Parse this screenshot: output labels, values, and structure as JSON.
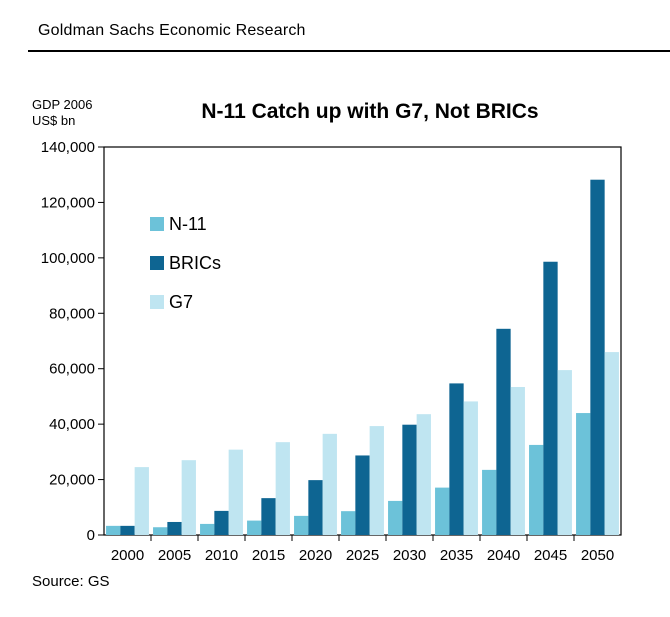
{
  "header": {
    "title": "Goldman Sachs Economic Research"
  },
  "source": "Source: GS",
  "chart_data": {
    "type": "bar",
    "title": "N-11 Catch up with G7, Not BRICs",
    "ylabel": [
      "GDP 2006",
      "US$ bn"
    ],
    "xlabel": "",
    "categories": [
      "2000",
      "2005",
      "2010",
      "2015",
      "2020",
      "2025",
      "2030",
      "2035",
      "2040",
      "2045",
      "2050"
    ],
    "series": [
      {
        "name": "N-11",
        "color": "#6cc2d9",
        "values": [
          3300,
          2800,
          4000,
          5200,
          6900,
          8600,
          12300,
          17100,
          23500,
          32500,
          44000
        ]
      },
      {
        "name": "BRICs",
        "color": "#0e6592",
        "values": [
          3300,
          4700,
          8700,
          13300,
          19800,
          28700,
          39800,
          54700,
          74400,
          98600,
          128200
        ]
      },
      {
        "name": "G7",
        "color": "#bfe5f1",
        "values": [
          24500,
          27000,
          30800,
          33500,
          36500,
          39300,
          43600,
          48200,
          53400,
          59500,
          66000
        ]
      }
    ],
    "ylim": [
      0,
      140000
    ],
    "yticks": [
      "0",
      "20,000",
      "40,000",
      "60,000",
      "80,000",
      "100,000",
      "120,000",
      "140,000"
    ],
    "grid": false,
    "legend_position": "top-left"
  }
}
